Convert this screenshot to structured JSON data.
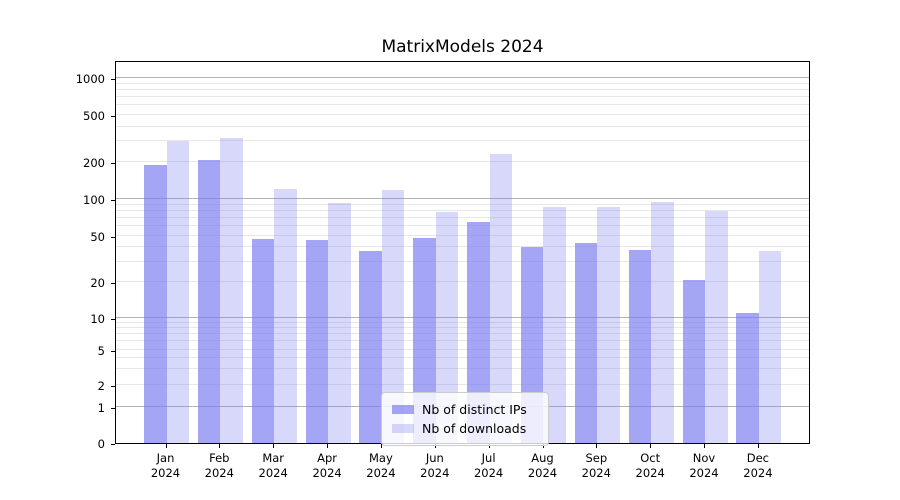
{
  "chart_data": {
    "type": "bar",
    "title": "MatrixModels 2024",
    "categories": [
      "Jan 2024",
      "Feb 2024",
      "Mar 2024",
      "Apr 2024",
      "May 2024",
      "Jun 2024",
      "Jul 2024",
      "Aug 2024",
      "Sep 2024",
      "Oct 2024",
      "Nov 2024",
      "Dec 2024"
    ],
    "series": [
      {
        "name": "Nb of distinct IPs",
        "color": "rgba(122,122,240,0.68)",
        "values": [
          190,
          210,
          47,
          46,
          37,
          48,
          65,
          40,
          43,
          38,
          21,
          11
        ]
      },
      {
        "name": "Nb of downloads",
        "color": "rgba(122,122,240,0.29)",
        "values": [
          300,
          320,
          122,
          92,
          118,
          78,
          235,
          86,
          86,
          94,
          80,
          37
        ]
      }
    ],
    "base_color": "#7a7af0",
    "xlabel": "",
    "ylabel": "",
    "yscale": "symlog",
    "y_ticks": [
      1000,
      500,
      200,
      100,
      50,
      20,
      10,
      5,
      2,
      1,
      0
    ],
    "y_major_gridlines": [
      1,
      10,
      100,
      1000
    ],
    "ylim": [
      0,
      1400
    ],
    "grid": true,
    "legend_position": "inside-bottom-center"
  }
}
